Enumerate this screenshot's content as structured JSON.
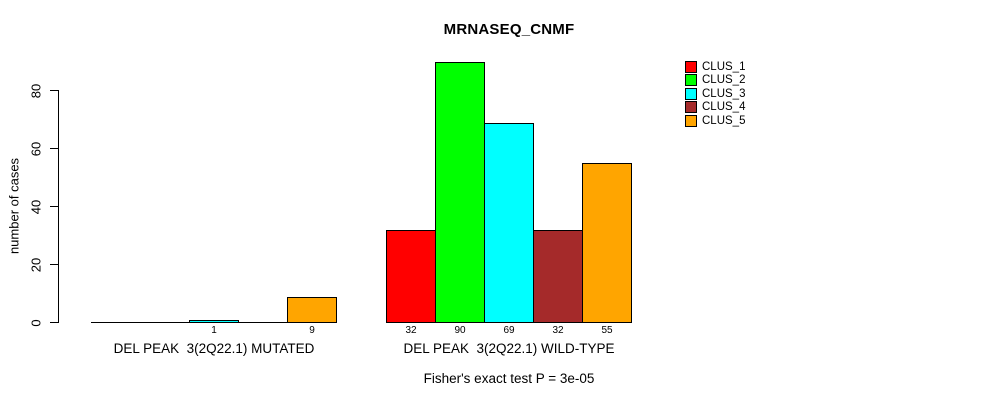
{
  "chart_data": {
    "type": "bar",
    "title": "MRNASEQ_CNMF",
    "ylabel": "number of cases",
    "xlabel": "",
    "ylim": [
      0,
      90
    ],
    "yticks": [
      0,
      20,
      40,
      60,
      80
    ],
    "grid": false,
    "legend_position": "top-right",
    "categories": [
      "DEL PEAK  3(2Q22.1) MUTATED",
      "DEL PEAK  3(2Q22.1) WILD-TYPE"
    ],
    "series": [
      {
        "name": "CLUS_1",
        "color": "#FF0000",
        "values": [
          0,
          32
        ]
      },
      {
        "name": "CLUS_2",
        "color": "#00FF00",
        "values": [
          0,
          90
        ]
      },
      {
        "name": "CLUS_3",
        "color": "#00FFFF",
        "values": [
          1,
          69
        ]
      },
      {
        "name": "CLUS_4",
        "color": "#A52A2A",
        "values": [
          0,
          32
        ]
      },
      {
        "name": "CLUS_5",
        "color": "#FFA500",
        "values": [
          9,
          55
        ]
      }
    ],
    "annotation": "Fisher's exact test P = 3e-05"
  }
}
